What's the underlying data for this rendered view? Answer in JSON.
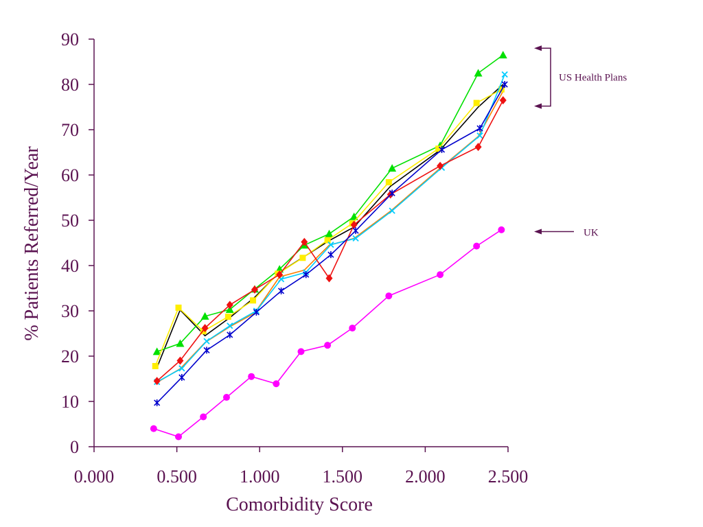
{
  "chart_data": {
    "type": "line",
    "title": "",
    "xlabel": "Comorbidity Score",
    "ylabel": "% Patients Referred/Year",
    "xlim": [
      0.0,
      2.5
    ],
    "ylim": [
      0,
      90
    ],
    "x_ticks": [
      0.0,
      0.5,
      1.0,
      1.5,
      2.0,
      2.5
    ],
    "x_tick_labels": [
      "0.000",
      "0.500",
      "1.000",
      "1.500",
      "2.000",
      "2.500"
    ],
    "y_ticks": [
      0,
      10,
      20,
      30,
      40,
      50,
      60,
      70,
      80,
      90
    ],
    "y_tick_labels": [
      "0",
      "10",
      "20",
      "30",
      "40",
      "50",
      "60",
      "70",
      "80",
      "90"
    ],
    "grid": false,
    "series": [
      {
        "color": "#000000",
        "marker": "none",
        "x": [
          0.38,
          0.52,
          0.67,
          0.82,
          0.97,
          1.12,
          1.27,
          1.42,
          1.57,
          1.79,
          2.09,
          2.32,
          2.47
        ],
        "y": [
          17.5,
          30.2,
          24.5,
          28.5,
          33.0,
          38.5,
          42.0,
          45.5,
          48.5,
          57.5,
          65.5,
          75.0,
          80.0
        ]
      },
      {
        "color": "#ff00ff",
        "marker": "circle",
        "x": [
          0.36,
          0.51,
          0.66,
          0.8,
          0.95,
          1.1,
          1.25,
          1.41,
          1.56,
          1.78,
          2.09,
          2.31,
          2.46
        ],
        "y": [
          4.0,
          2.2,
          6.6,
          10.9,
          15.5,
          13.9,
          21.0,
          22.4,
          26.2,
          33.3,
          38.0,
          44.3,
          47.9
        ]
      },
      {
        "color": "#ff7f00",
        "marker": "none",
        "x": [
          0.38,
          0.52,
          0.67,
          0.82,
          0.97,
          1.12,
          1.27,
          1.42,
          1.57,
          1.79,
          2.09,
          2.32,
          2.47
        ],
        "y": [
          14.2,
          17.2,
          23.0,
          26.5,
          29.5,
          37.5,
          39.0,
          44.5,
          46.0,
          52.0,
          61.5,
          68.5,
          78.5
        ]
      },
      {
        "color": "#00e000",
        "marker": "triangle",
        "x": [
          0.38,
          0.52,
          0.67,
          0.82,
          0.97,
          1.12,
          1.27,
          1.42,
          1.57,
          1.8,
          2.09,
          2.32,
          2.47
        ],
        "y": [
          21.0,
          22.8,
          28.8,
          30.3,
          34.8,
          39.2,
          44.5,
          47.0,
          50.8,
          61.5,
          66.5,
          82.5,
          86.5
        ]
      },
      {
        "color": "#ffee00",
        "marker": "square",
        "x": [
          0.37,
          0.51,
          0.66,
          0.81,
          0.96,
          1.11,
          1.26,
          1.41,
          1.56,
          1.78,
          2.08,
          2.31,
          2.46
        ],
        "y": [
          17.8,
          30.7,
          25.5,
          28.7,
          32.3,
          38.2,
          41.7,
          45.6,
          49.3,
          58.4,
          65.8,
          75.9,
          78.9
        ]
      },
      {
        "color": "#00ccff",
        "marker": "x",
        "x": [
          0.38,
          0.53,
          0.68,
          0.82,
          0.98,
          1.13,
          1.28,
          1.43,
          1.58,
          1.8,
          2.1,
          2.33,
          2.48
        ],
        "y": [
          14.3,
          17.3,
          23.3,
          26.7,
          30.0,
          37.0,
          38.5,
          44.6,
          46.0,
          52.1,
          61.6,
          68.7,
          82.2
        ]
      },
      {
        "color": "#ee1111",
        "marker": "diamond",
        "x": [
          0.38,
          0.52,
          0.67,
          0.82,
          0.97,
          1.12,
          1.27,
          1.42,
          1.57,
          1.79,
          2.09,
          2.32,
          2.47
        ],
        "y": [
          14.5,
          19.0,
          26.2,
          31.3,
          34.7,
          38.0,
          45.2,
          37.2,
          49.0,
          55.7,
          62.0,
          66.2,
          76.5
        ]
      },
      {
        "color": "#0000cc",
        "marker": "star",
        "x": [
          0.38,
          0.53,
          0.68,
          0.82,
          0.98,
          1.13,
          1.28,
          1.43,
          1.58,
          1.8,
          2.1,
          2.33,
          2.48
        ],
        "y": [
          9.7,
          15.3,
          21.3,
          24.7,
          29.7,
          34.4,
          38.0,
          42.4,
          47.7,
          56.0,
          65.6,
          70.3,
          80.0
        ]
      }
    ],
    "annotations": [
      {
        "text": "US Health Plans",
        "kind": "bracket",
        "y_top": 88.0,
        "y_bottom": 75.2
      },
      {
        "text": "UK",
        "kind": "arrow",
        "y": 47.5
      }
    ]
  },
  "colors": {
    "axis": "#5a1250",
    "text": "#5a1250"
  }
}
